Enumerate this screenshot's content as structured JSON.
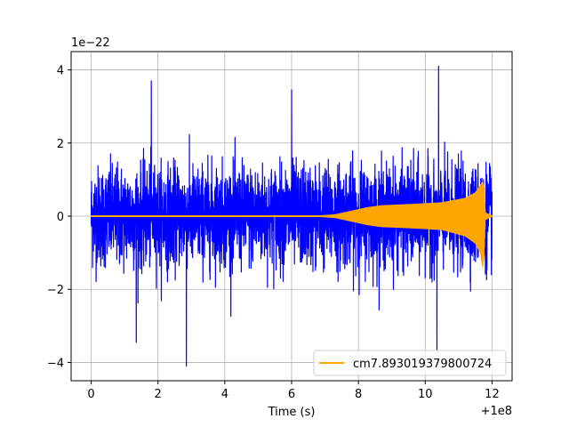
{
  "chart_data": {
    "type": "line",
    "title": "",
    "xlabel": "Time (s)",
    "ylabel": "",
    "x_offset_label": "+1e8",
    "y_scale_label": "1e−22",
    "xlim": [
      -0.6,
      12.6
    ],
    "ylim": [
      -4.5,
      4.5
    ],
    "x_ticks": [
      0,
      2,
      4,
      6,
      8,
      10,
      12
    ],
    "x_tick_labels": [
      "0",
      "2",
      "4",
      "6",
      "8",
      "10",
      "12"
    ],
    "y_ticks": [
      -4,
      -2,
      0,
      2,
      4
    ],
    "y_tick_labels": [
      "−4",
      "−2",
      "0",
      "2",
      "4"
    ],
    "grid": true,
    "legend": {
      "position": "lower-right",
      "entries": [
        "cm7.893019379800724"
      ]
    },
    "series": [
      {
        "color": "#0000ff",
        "x_range": [
          0,
          12
        ],
        "typical_amplitude": 1.5,
        "peaks": [
          {
            "x": 1.8,
            "y": 3.7
          },
          {
            "x": 2.85,
            "y": -4.1
          },
          {
            "x": 10.4,
            "y": 4.1
          },
          {
            "x": 10.35,
            "y": -3.65
          },
          {
            "x": 1.35,
            "y": -3.45
          },
          {
            "x": 6.0,
            "y": 3.45
          }
        ]
      },
      {
        "name": "cm7.893019379800724",
        "color": "#ffa500",
        "envelope": {
          "x": [
            0,
            6.8,
            7.3,
            7.8,
            8.3,
            8.7,
            9.5,
            10.5,
            11.2,
            11.5,
            11.65,
            11.72,
            11.76,
            11.8,
            12.0
          ],
          "upper": [
            0.02,
            0.02,
            0.05,
            0.15,
            0.25,
            0.3,
            0.33,
            0.38,
            0.5,
            0.65,
            0.85,
            0.95,
            0.8,
            0.1,
            0.02
          ],
          "lower": [
            -0.02,
            -0.02,
            -0.05,
            -0.15,
            -0.25,
            -0.3,
            -0.33,
            -0.38,
            -0.55,
            -0.75,
            -1.0,
            -1.4,
            -1.1,
            -0.1,
            -0.02
          ]
        }
      }
    ]
  }
}
